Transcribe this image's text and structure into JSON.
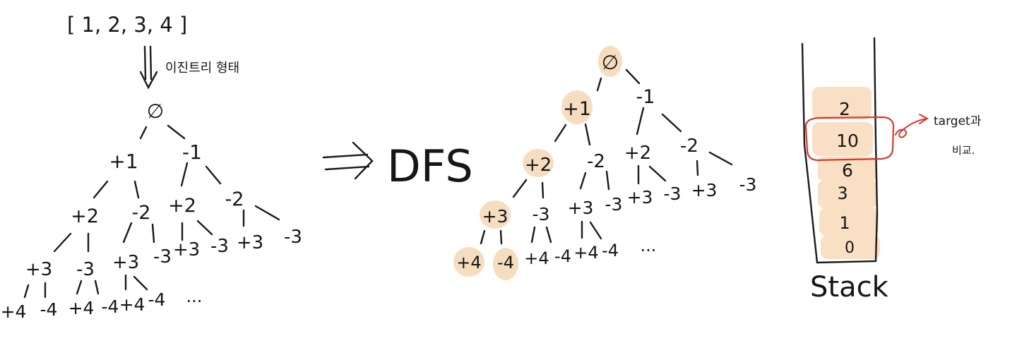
{
  "input_array": "[ 1, 2, 3, 4 ]",
  "transform_label": "이진트리 형태",
  "dfs_label": "DFS",
  "ellipsis": "...",
  "tree": {
    "root": "∅",
    "level1": [
      "+1",
      "-1"
    ],
    "level2": [
      "+2",
      "-2",
      "+2",
      "-2"
    ],
    "level3": [
      "+3",
      "-3",
      "+3",
      "-3",
      "+3",
      "-3",
      "+3",
      "-3"
    ],
    "level4": [
      "+4",
      "-4",
      "+4",
      "-4",
      "+4",
      "-4"
    ]
  },
  "stack": {
    "values": [
      "2",
      "10",
      "6",
      "3",
      "1",
      "0"
    ],
    "label": "Stack",
    "compare_note_line1": "target과",
    "compare_note_line2": "비교."
  },
  "colors": {
    "highlight": "#f6ddc0",
    "stack_fill": "#f9dfc3",
    "compare_mark": "#d23b32"
  }
}
